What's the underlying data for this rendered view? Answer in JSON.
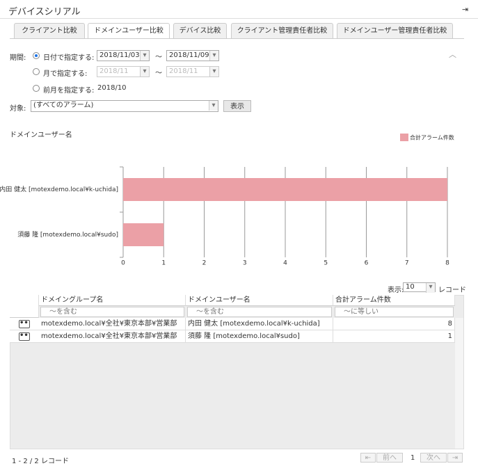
{
  "header": {
    "title": "デバイスシリアル"
  },
  "tabs": [
    "クライアント比較",
    "ドメインユーザー比較",
    "デバイス比較",
    "クライアント管理責任者比較",
    "ドメインユーザー管理責任者比較"
  ],
  "filter": {
    "period_label": "期間:",
    "by_date": "日付で指定する:",
    "date_from": "2018/11/03",
    "date_to": "2018/11/09",
    "tilde": "〜",
    "by_month": "月で指定する:",
    "month_from": "2018/11",
    "month_to": "2018/11",
    "last_month": "前月を指定する:",
    "last_month_value": "2018/10",
    "target_label": "対象:",
    "target_value": "(すべてのアラーム)",
    "show_button": "表示"
  },
  "chart_data": {
    "type": "bar",
    "orientation": "horizontal",
    "ylabel": "ドメインユーザー名",
    "categories": [
      "内田 健太 [motexdemo.local¥k-uchida]",
      "須藤 隆 [motexdemo.local¥sudo]"
    ],
    "series": [
      {
        "name": "合計アラーム件数",
        "color": "#eba0a6",
        "values": [
          8,
          1
        ]
      }
    ],
    "xlim": [
      0,
      8
    ],
    "xticks": [
      0,
      1,
      2,
      3,
      4,
      5,
      6,
      7,
      8
    ],
    "grid": true,
    "legend": "top-right"
  },
  "table": {
    "page_size_label": "表示:",
    "page_size": 10,
    "page_size_unit": "レコード",
    "columns": [
      "ドメイングループ名",
      "ドメインユーザー名",
      "合計アラーム件数"
    ],
    "filters": [
      "〜を含む",
      "〜を含む",
      "〜に等しい"
    ],
    "rows": [
      [
        "motexdemo.local¥全社¥東京本部¥営業部",
        "内田 健太 [motexdemo.local¥k-uchida]",
        8
      ],
      [
        "motexdemo.local¥全社¥東京本部¥営業部",
        "須藤 隆 [motexdemo.local¥sudo]",
        1
      ]
    ]
  },
  "footer": {
    "record_count": "1 - 2 / 2 レコード",
    "prev": "前へ",
    "page": 1,
    "next": "次へ"
  }
}
